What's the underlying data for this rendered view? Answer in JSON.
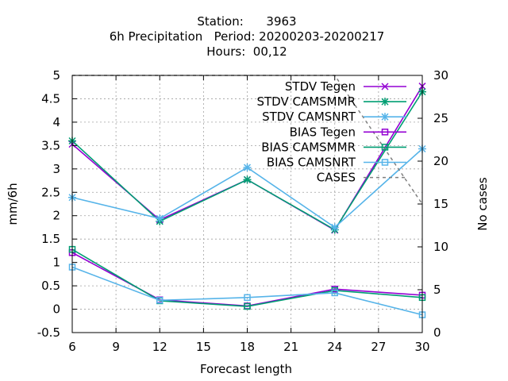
{
  "chart_data": {
    "type": "line",
    "title_lines": [
      "Station:      3963",
      "6h Precipitation   Period: 20200203-20200217",
      "Hours:  00,12"
    ],
    "xlabel": "Forecast length",
    "ylabel": "mm/6h",
    "y2label": "No cases",
    "xlim": [
      6,
      30
    ],
    "ylim": [
      -0.5,
      5
    ],
    "y2lim": [
      0,
      30
    ],
    "x_ticks": [
      6,
      9,
      12,
      15,
      18,
      21,
      24,
      27,
      30
    ],
    "x_tick_labels": [
      "6",
      "9",
      "12",
      "15",
      "18",
      "21",
      "24",
      "27",
      "30"
    ],
    "y_ticks": [
      -0.5,
      0,
      0.5,
      1,
      1.5,
      2,
      2.5,
      3,
      3.5,
      4,
      4.5,
      5
    ],
    "y_tick_labels": [
      "-0.5",
      "0",
      "0.5",
      "1",
      "1.5",
      "2",
      "2.5",
      "3",
      "3.5",
      "4",
      "4.5",
      "5"
    ],
    "y2_ticks": [
      0,
      5,
      10,
      15,
      20,
      25,
      30
    ],
    "y2_tick_labels": [
      "0",
      "5",
      "10",
      "15",
      "20",
      "25",
      "30"
    ],
    "grid": true,
    "legend_position": "top-right",
    "x": [
      6,
      12,
      18,
      24,
      30
    ],
    "series": [
      {
        "name": "STDV Tegen",
        "color": "#9400d3",
        "marker": "x",
        "axis": "y",
        "values": [
          3.53,
          1.91,
          2.77,
          1.69,
          4.77
        ]
      },
      {
        "name": "STDV CAMSMMR",
        "color": "#009e73",
        "marker": "star",
        "axis": "y",
        "values": [
          3.6,
          1.88,
          2.77,
          1.7,
          4.65
        ]
      },
      {
        "name": "STDV CAMSNRT",
        "color": "#56b4e9",
        "marker": "star",
        "axis": "y",
        "values": [
          2.39,
          1.94,
          3.03,
          1.75,
          3.43
        ]
      },
      {
        "name": "BIAS Tegen",
        "color": "#9400d3",
        "marker": "square",
        "axis": "y",
        "values": [
          1.21,
          0.2,
          0.07,
          0.43,
          0.3
        ]
      },
      {
        "name": "BIAS CAMSMMR",
        "color": "#009e73",
        "marker": "square",
        "axis": "y",
        "values": [
          1.28,
          0.18,
          0.06,
          0.4,
          0.25
        ]
      },
      {
        "name": "BIAS CAMSNRT",
        "color": "#56b4e9",
        "marker": "square",
        "axis": "y",
        "values": [
          0.9,
          0.19,
          0.25,
          0.35,
          -0.12
        ]
      },
      {
        "name": "CASES",
        "color": "#808080",
        "marker": "none",
        "dashed": true,
        "axis": "y2",
        "values": [
          30,
          30,
          30,
          30,
          15
        ]
      }
    ]
  }
}
